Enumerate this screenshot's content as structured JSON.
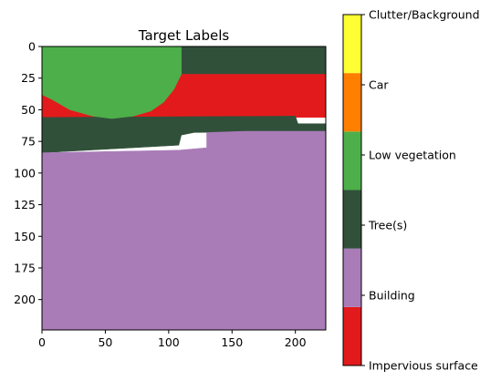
{
  "chart_data": {
    "type": "heatmap",
    "title": "Target Labels",
    "xlim": [
      0,
      224
    ],
    "ylim": [
      224,
      0
    ],
    "x_ticks": [
      0,
      50,
      100,
      150,
      200
    ],
    "y_ticks": [
      0,
      25,
      50,
      75,
      100,
      125,
      150,
      175,
      200
    ],
    "classes": [
      {
        "name": "Impervious surface",
        "value": 0,
        "color": "#e31a1c"
      },
      {
        "name": "Building",
        "value": 1,
        "color": "#a97cb8"
      },
      {
        "name": "Tree(s)",
        "value": 2,
        "color": "#31503a"
      },
      {
        "name": "Low vegetation",
        "value": 3,
        "color": "#4daf4a"
      },
      {
        "name": "Car",
        "value": 4,
        "color": "#ff7f00"
      },
      {
        "name": "Clutter/Background",
        "value": 5,
        "color": "#ffff33"
      }
    ],
    "regions": [
      {
        "label": "Tree(s)",
        "value": 2,
        "polygon": [
          [
            0,
            0
          ],
          [
            224,
            0
          ],
          [
            224,
            22
          ],
          [
            0,
            22
          ]
        ]
      },
      {
        "label": "Impervious surface",
        "value": 0,
        "polygon": [
          [
            0,
            22
          ],
          [
            224,
            22
          ],
          [
            224,
            56
          ],
          [
            0,
            56
          ]
        ]
      },
      {
        "label": "Tree(s)",
        "value": 2,
        "polygon": [
          [
            0,
            56
          ],
          [
            200,
            55
          ],
          [
            202,
            61
          ],
          [
            224,
            61
          ],
          [
            224,
            67
          ],
          [
            120,
            68
          ],
          [
            110,
            70
          ],
          [
            108,
            78
          ],
          [
            0,
            84
          ]
        ]
      },
      {
        "label": "Building",
        "value": 1,
        "polygon": [
          [
            0,
            84
          ],
          [
            108,
            82
          ],
          [
            130,
            80
          ],
          [
            130,
            68
          ],
          [
            160,
            67
          ],
          [
            224,
            67
          ],
          [
            224,
            224
          ],
          [
            0,
            224
          ]
        ]
      },
      {
        "label": "Low vegetation",
        "value": 3,
        "polygon": [
          [
            0,
            0
          ],
          [
            110,
            0
          ],
          [
            110,
            22
          ],
          [
            104,
            34
          ],
          [
            96,
            44
          ],
          [
            86,
            51
          ],
          [
            72,
            55
          ],
          [
            55,
            57
          ],
          [
            40,
            55
          ],
          [
            22,
            50
          ],
          [
            8,
            42
          ],
          [
            0,
            38
          ]
        ]
      }
    ]
  }
}
